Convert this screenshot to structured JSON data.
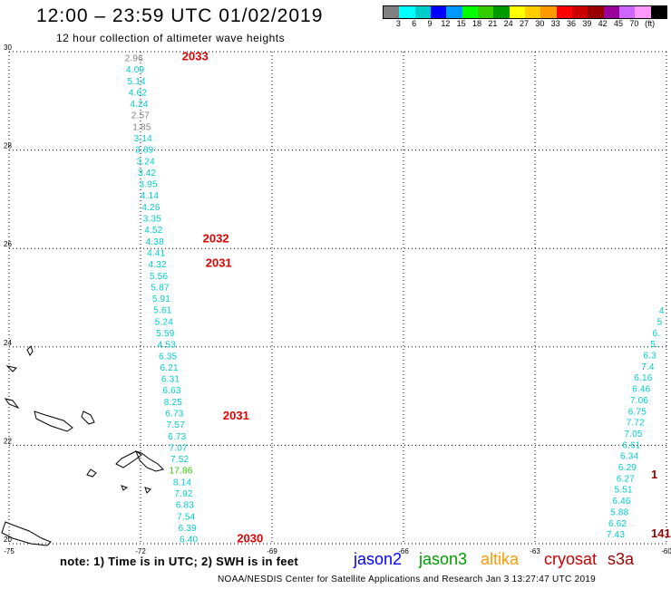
{
  "header": {
    "title": "12:00 – 23:59 UTC 01/02/2019",
    "subtitle": "12 hour collection of altimeter wave heights"
  },
  "colorbar": {
    "colors": [
      "#808080",
      "#00ffff",
      "#00cccc",
      "#0000ff",
      "#0099ff",
      "#00ff00",
      "#33cc00",
      "#009900",
      "#ffff00",
      "#ffcc00",
      "#ff9900",
      "#ff0000",
      "#cc0000",
      "#990000",
      "#990099",
      "#cc66ff",
      "#ff99ff",
      "#000000"
    ],
    "labels": [
      "3",
      "6",
      "9",
      "12",
      "15",
      "18",
      "21",
      "24",
      "27",
      "30",
      "33",
      "36",
      "39",
      "42",
      "45",
      "70",
      "(ft)"
    ]
  },
  "axes": {
    "lat_labels": [
      "30",
      "28",
      "26",
      "24",
      "22",
      "20"
    ],
    "lon_labels": [
      "-75",
      "-72",
      "-69",
      "-66",
      "-63",
      "-60"
    ]
  },
  "chart_data": {
    "type": "scatter",
    "title": "12 hour collection of altimeter wave heights",
    "xlim": [
      -75,
      -60
    ],
    "ylim": [
      20,
      30
    ],
    "units": "ft",
    "track_west": {
      "values": [
        "2.96",
        "4.09",
        "5.14",
        "4.62",
        "4.24",
        "2.57",
        "1.85",
        "3.14",
        "3.89",
        "3.24",
        "3.42",
        "3.95",
        "4.14",
        "4.26",
        "3.35",
        "4.52",
        "4.38",
        "4.41",
        "4.32",
        "5.56",
        "5.87",
        "5.91",
        "5.61",
        "5.24",
        "5.59",
        "4.53",
        "6.35",
        "6.21",
        "6.31",
        "6.63",
        "8.25",
        "6.73",
        "7.57",
        "6.73",
        "7.07",
        "7.52",
        "17.86",
        "8.14",
        "7.92",
        "6.83",
        "7.54",
        "6.39",
        "6.40"
      ],
      "times": [
        {
          "label": "2033",
          "lat": 29.9
        },
        {
          "label": "2032",
          "lat": 26.2
        },
        {
          "label": "2031",
          "lat": 25.7
        },
        {
          "label": "2031",
          "lat": 22.6
        },
        {
          "label": "2030",
          "lat": 20.1
        }
      ]
    },
    "track_east": {
      "values": [
        "4",
        "5",
        "6.",
        "5.",
        "6.3",
        "7.4",
        "6.16",
        "6.46",
        "7.06",
        "6.75",
        "7.72",
        "7.05",
        "6.61",
        "6.34",
        "6.29",
        "6.27",
        "5.51",
        "6.46",
        "5.88",
        "6.62",
        "7.43"
      ],
      "times": [
        {
          "label": "1",
          "lat": 21.4
        },
        {
          "label": "141",
          "lat": 20.2
        }
      ]
    }
  },
  "footer": {
    "note": "note:  1) Time is in UTC;  2) SWH is in feet",
    "satellites": [
      {
        "name": "jason2",
        "color": "#0000ff"
      },
      {
        "name": "jason3",
        "color": "#009900"
      },
      {
        "name": "altika",
        "color": "#ff9900"
      },
      {
        "name": "cryosat",
        "color": "#cc0000"
      },
      {
        "name": "s3a",
        "color": "#990000"
      }
    ],
    "credit": "NOAA/NESDIS Center for Satellite Applications and Research    Jan  3 13:27:47 UTC 2019"
  }
}
